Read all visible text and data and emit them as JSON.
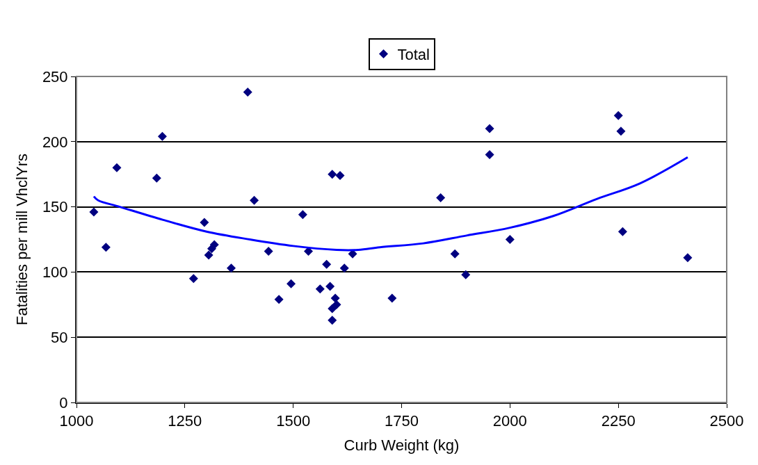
{
  "chart_data": {
    "type": "scatter",
    "xlabel": "Curb Weight (kg)",
    "ylabel": "Fatalities per mill VhclYrs",
    "xlim": [
      1000,
      2500
    ],
    "xticks": [
      1000,
      1250,
      1500,
      1750,
      2000,
      2250,
      2500
    ],
    "ylim": [
      0,
      250
    ],
    "yticks": [
      0,
      50,
      100,
      150,
      200,
      250
    ],
    "grid": "y",
    "legend": "top",
    "marker": "diamond",
    "series": [
      {
        "name": "Total",
        "color": "#000080",
        "x": [
          1040,
          1068,
          1093,
          1185,
          1198,
          1270,
          1295,
          1305,
          1312,
          1318,
          1357,
          1395,
          1410,
          1443,
          1467,
          1495,
          1522,
          1535,
          1562,
          1577,
          1585,
          1590,
          1590,
          1590,
          1597,
          1600,
          1608,
          1618,
          1637,
          1728,
          1840,
          1873,
          1898,
          1953,
          1953,
          2000,
          2250,
          2256,
          2260,
          2410
        ],
        "values": [
          146,
          119,
          180,
          172,
          204,
          95,
          138,
          113,
          118,
          121,
          103,
          238,
          155,
          116,
          79,
          91,
          144,
          116,
          87,
          106,
          89,
          175,
          72,
          63,
          80,
          75,
          174,
          103,
          114,
          80,
          157,
          114,
          98,
          210,
          190,
          125,
          220,
          208,
          131,
          111
        ]
      },
      {
        "color": "#0000ff",
        "type": "line",
        "marker": "none",
        "line_style": "solid",
        "x": [
          1040,
          1050,
          1100,
          1200,
          1300,
          1400,
          1500,
          1600,
          1650,
          1700,
          1800,
          1900,
          2000,
          2100,
          2200,
          2300,
          2410
        ],
        "values": [
          158,
          155,
          150,
          140,
          131,
          125,
          120,
          117,
          117,
          119,
          122,
          128,
          134,
          143,
          156,
          168,
          188
        ]
      }
    ]
  }
}
